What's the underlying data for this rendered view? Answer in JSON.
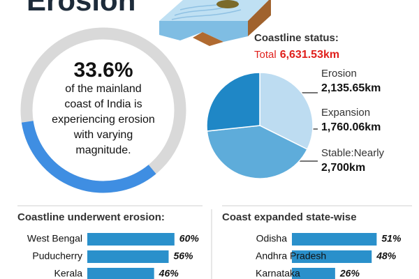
{
  "title": "Erosion",
  "chart_data": [
    {
      "type": "donut",
      "value": 33.6,
      "value_label": "33.6%",
      "color": "#3f8ee2",
      "track_color": "#d9d9d9",
      "description_lines": [
        "of the mainland",
        "coast of India is",
        "experiencing erosion",
        "with varying",
        "magnitude."
      ]
    },
    {
      "type": "pie",
      "title": "Coastline status:",
      "total_label": "Total",
      "total_text": "6,631.53km",
      "categories": [
        "Erosion",
        "Expansion",
        "Stable:Nearly"
      ],
      "values": [
        2135.65,
        1760.06,
        2700
      ],
      "value_labels": [
        "2,135.65km",
        "1,760.06km",
        "2,700km"
      ],
      "colors": [
        "#bddcf1",
        "#1f87c6",
        "#5eacda"
      ]
    },
    {
      "type": "hbar",
      "title": "Coastline underwent erosion:",
      "color": "#2a90cb",
      "categories": [
        "West Bengal",
        "Puducherry",
        "Kerala"
      ],
      "values": [
        60,
        56,
        46
      ],
      "value_labels": [
        "60%",
        "56%",
        "46%"
      ]
    },
    {
      "type": "hbar",
      "title": "Coast expanded state-wise",
      "color": "#2a90cb",
      "categories": [
        "Odisha",
        "Andhra Pradesh",
        "Karnataka"
      ],
      "values": [
        51,
        48,
        26
      ],
      "value_labels": [
        "51%",
        "48%",
        "26%"
      ]
    }
  ]
}
